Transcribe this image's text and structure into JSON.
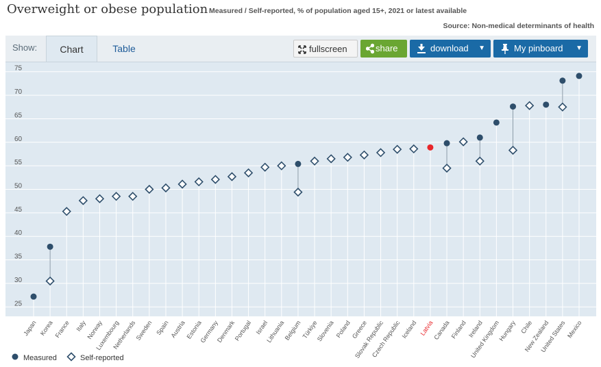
{
  "header": {
    "title": "Overweight or obese population",
    "subtitle": "Measured / Self-reported, % of population aged 15+, 2021 or latest available",
    "source": "Source: Non-medical determinants of health"
  },
  "toolbar": {
    "show_label": "Show:",
    "tabs": [
      {
        "label": "Chart"
      },
      {
        "label": "Table"
      }
    ],
    "fullscreen_label": "fullscreen",
    "share_label": "share",
    "download_label": "download",
    "pinboard_label": "My pinboard"
  },
  "colors": {
    "measured": "#2e4e6b",
    "self_reported": "#2e4e6b",
    "highlight": "#e8262a",
    "background": "#dfe9f1",
    "share": "#6aa632",
    "primary": "#1a6aa6"
  },
  "chart_data": {
    "type": "scatter",
    "categories": [
      "Japan",
      "Korea",
      "France",
      "Italy",
      "Norway",
      "Luxembourg",
      "Netherlands",
      "Sweden",
      "Spain",
      "Austria",
      "Estonia",
      "Germany",
      "Denmark",
      "Portugal",
      "Israel",
      "Lithuania",
      "Belgium",
      "Türkiye",
      "Slovenia",
      "Poland",
      "Greece",
      "Slovak Republic",
      "Czech Republic",
      "Iceland",
      "Latvia",
      "Canada",
      "Finland",
      "Ireland",
      "United Kingdom",
      "Hungary",
      "Chile",
      "New Zealand",
      "United States",
      "Mexico"
    ],
    "highlight_category": "Latvia",
    "ylim": [
      23,
      77
    ],
    "yticks": [
      25,
      30,
      35,
      40,
      45,
      50,
      55,
      60,
      65,
      70,
      75
    ],
    "grid": true,
    "legend_position": "bottom-left",
    "series": [
      {
        "name": "Measured",
        "marker": "circle",
        "values": [
          27.2,
          37.8,
          null,
          null,
          null,
          null,
          null,
          null,
          null,
          null,
          null,
          null,
          null,
          null,
          null,
          null,
          55.4,
          null,
          null,
          null,
          null,
          null,
          null,
          null,
          58.9,
          59.8,
          null,
          61.0,
          64.2,
          67.6,
          null,
          68.0,
          73.1,
          74.1
        ]
      },
      {
        "name": "Self-reported",
        "marker": "diamond",
        "values": [
          null,
          30.5,
          45.3,
          47.6,
          48.0,
          48.5,
          48.5,
          50.0,
          50.3,
          51.1,
          51.6,
          52.1,
          52.7,
          53.5,
          54.7,
          55.0,
          49.4,
          56.0,
          56.5,
          56.8,
          57.3,
          57.8,
          58.5,
          58.6,
          null,
          54.5,
          60.1,
          56.0,
          null,
          58.3,
          67.8,
          null,
          67.5,
          null
        ]
      }
    ]
  }
}
